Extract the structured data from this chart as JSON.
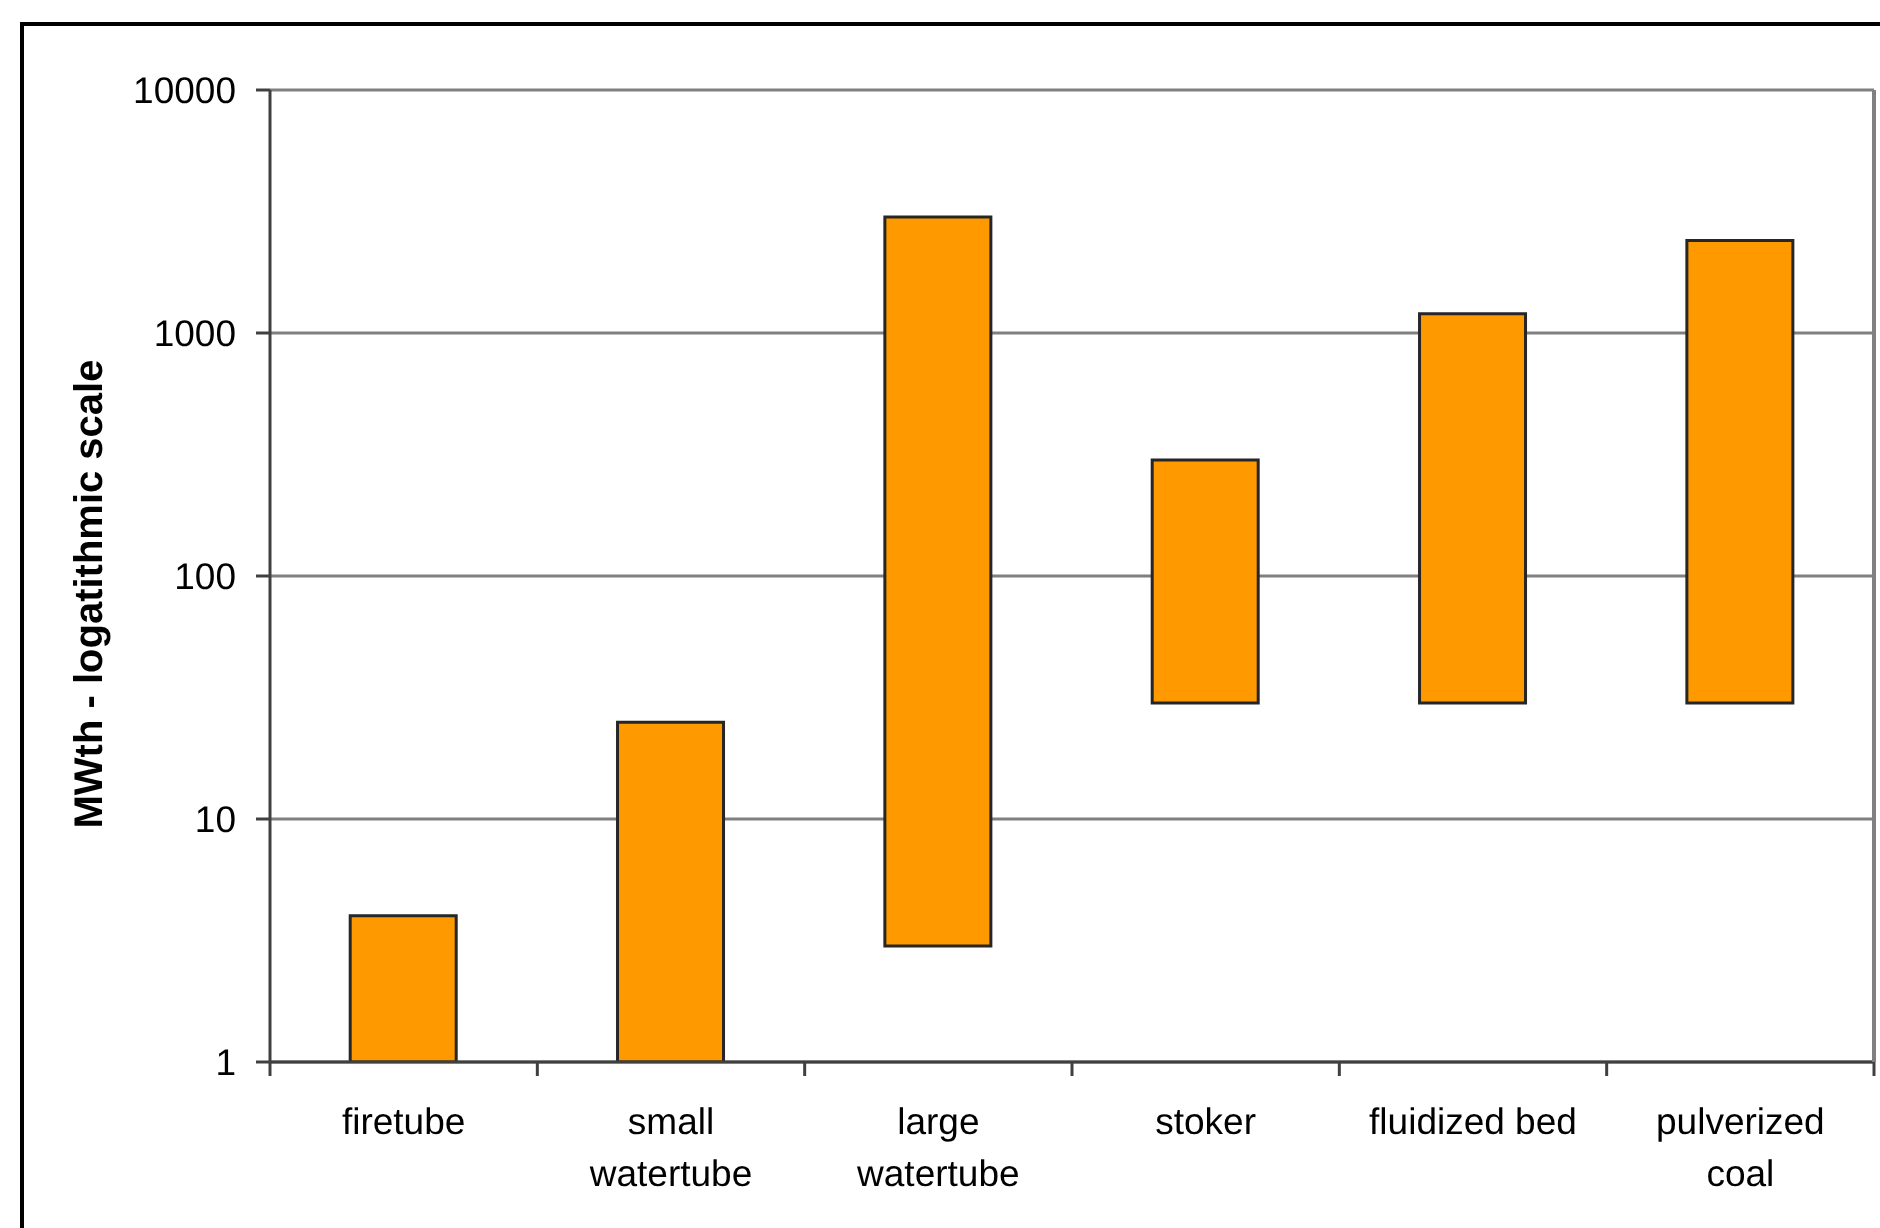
{
  "chart_data": {
    "type": "bar",
    "ylabel": "MWth - logatithmic scale",
    "categories": [
      "firetube",
      "small watertube",
      "large watertube",
      "stoker",
      "fluidized bed",
      "pulverized coal"
    ],
    "base": [
      1,
      1,
      3,
      30,
      30,
      30
    ],
    "values": [
      3,
      24,
      2997,
      270,
      1170,
      2370
    ],
    "color": "#ff9900",
    "ylim": [
      1,
      10000
    ],
    "yticks": [
      1,
      10,
      100,
      1000,
      10000
    ],
    "log": true,
    "grid": "y"
  }
}
